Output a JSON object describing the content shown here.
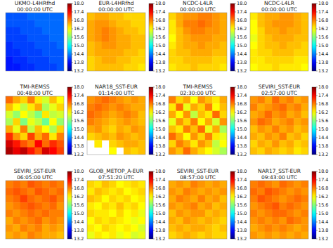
{
  "chart_data": [
    {
      "type": "heatmap",
      "title": "UKMO-L4HRfhd",
      "subtitle": "00:00:00 UTC",
      "zlim": [
        13.2,
        18.0
      ],
      "zticks": [
        13.2,
        13.8,
        14.4,
        {
          "value": 15,
          "label": "15.0"
        },
        15.6,
        16.2,
        16.8,
        17.4,
        {
          "value": 18,
          "label": "18.0"
        }
      ],
      "cells": [
        [
          14.2,
          14.2,
          14.2,
          14.3,
          14.3,
          14.3,
          14.3,
          14.3
        ],
        [
          14.2,
          14.2,
          14.2,
          14.2,
          14.3,
          14.3,
          14.3,
          14.3
        ],
        [
          14.1,
          14.1,
          14.2,
          14.2,
          14.2,
          14.3,
          14.3,
          14.3
        ],
        [
          14.1,
          14.1,
          14.1,
          14.2,
          14.2,
          14.2,
          14.3,
          14.3
        ],
        [
          14.0,
          14.1,
          14.1,
          14.1,
          14.2,
          14.2,
          14.2,
          14.3
        ],
        [
          14.0,
          14.0,
          14.1,
          14.1,
          14.1,
          14.2,
          14.2,
          14.2
        ],
        [
          13.9,
          14.0,
          14.0,
          14.1,
          14.1,
          14.1,
          14.2,
          14.2
        ],
        [
          13.9,
          13.9,
          14.0,
          14.0,
          14.1,
          14.1,
          14.1,
          14.2
        ]
      ]
    },
    {
      "type": "heatmap",
      "title": "EUR-L4HRfhd",
      "subtitle": "00:00:00 UTC",
      "zlim": [
        13.2,
        18.0
      ],
      "zticks": [
        13.2,
        13.8,
        14.4,
        {
          "value": 15,
          "label": "15.0"
        },
        15.6,
        16.2,
        16.8,
        17.4,
        {
          "value": 18,
          "label": "18.0"
        }
      ],
      "cells": [
        [
          16.5,
          16.6,
          16.6,
          16.5,
          16.5,
          16.4,
          16.4,
          16.4
        ],
        [
          16.6,
          16.7,
          16.7,
          16.6,
          16.5,
          16.5,
          16.4,
          16.4
        ],
        [
          16.6,
          16.7,
          16.8,
          16.7,
          16.6,
          16.5,
          16.5,
          16.4
        ],
        [
          16.6,
          16.7,
          16.8,
          16.7,
          16.6,
          16.6,
          16.5,
          16.5
        ],
        [
          16.5,
          16.6,
          16.7,
          16.7,
          16.6,
          16.6,
          16.5,
          16.5
        ],
        [
          16.5,
          16.6,
          16.6,
          16.6,
          16.6,
          16.5,
          16.5,
          16.4
        ],
        [
          16.4,
          16.5,
          16.6,
          16.6,
          16.5,
          16.5,
          16.4,
          16.4
        ],
        [
          16.4,
          16.5,
          16.5,
          16.5,
          16.5,
          16.4,
          16.4,
          16.3
        ]
      ]
    },
    {
      "type": "heatmap",
      "title": "NCDC-L4LR",
      "subtitle": "00:00:00 UTC",
      "zlim": [
        13.2,
        18.0
      ],
      "zticks": [
        13.2,
        13.8,
        14.4,
        {
          "value": 15,
          "label": "15.0"
        },
        15.6,
        16.2,
        16.8,
        17.4,
        {
          "value": 18,
          "label": "18.0"
        }
      ],
      "cells": [
        [
          16.4,
          16.6,
          16.7,
          16.7,
          16.8,
          16.8,
          16.7,
          16.6
        ],
        [
          16.3,
          16.6,
          16.8,
          16.8,
          16.9,
          16.8,
          16.7,
          16.6
        ],
        [
          16.3,
          16.5,
          16.7,
          16.8,
          16.8,
          16.7,
          16.7,
          16.6
        ],
        [
          16.2,
          16.5,
          16.6,
          16.7,
          16.7,
          16.7,
          16.6,
          16.6
        ],
        [
          16.3,
          16.5,
          16.6,
          16.6,
          16.7,
          16.6,
          16.6,
          16.5
        ],
        [
          16.4,
          16.5,
          16.5,
          16.6,
          16.6,
          16.6,
          16.5,
          16.5
        ],
        [
          16.4,
          16.4,
          16.5,
          16.5,
          16.5,
          16.5,
          16.4,
          16.4
        ],
        [
          16.3,
          16.4,
          16.4,
          16.5,
          16.4,
          16.4,
          16.4,
          16.3
        ]
      ]
    },
    {
      "type": "heatmap",
      "title": "NCDC-L4LR",
      "subtitle": "00:00:00 UTC",
      "zlim": [
        13.2,
        18.0
      ],
      "zticks": [
        13.2,
        13.8,
        14.4,
        {
          "value": 15,
          "label": "15.0"
        },
        15.6,
        16.2,
        16.8,
        17.4,
        {
          "value": 18,
          "label": "18.0"
        }
      ],
      "cells": [
        [
          16.3,
          16.5,
          16.6,
          16.6,
          16.7,
          16.7,
          16.6,
          16.5
        ],
        [
          16.2,
          16.5,
          16.6,
          16.7,
          16.7,
          16.7,
          16.6,
          16.5
        ],
        [
          16.2,
          16.4,
          16.6,
          16.6,
          16.7,
          16.6,
          16.6,
          16.5
        ],
        [
          16.1,
          16.4,
          16.5,
          16.6,
          16.6,
          16.6,
          16.5,
          16.5
        ],
        [
          16.2,
          16.4,
          16.5,
          16.5,
          16.6,
          16.5,
          16.5,
          16.4
        ],
        [
          16.3,
          16.4,
          16.4,
          16.5,
          16.5,
          16.5,
          16.4,
          16.4
        ],
        [
          16.3,
          16.3,
          16.4,
          16.4,
          16.4,
          16.4,
          16.3,
          16.3
        ],
        [
          16.2,
          16.3,
          16.3,
          16.4,
          16.3,
          16.3,
          16.3,
          16.2
        ]
      ]
    },
    {
      "type": "heatmap",
      "title": "TMI-REMSS",
      "subtitle": "00:48:00 UTC",
      "zlim": [
        13.2,
        18.0
      ],
      "zticks": [
        13.2,
        13.8,
        14.4,
        {
          "value": 15,
          "label": "15.0"
        },
        15.6,
        16.2,
        16.8,
        17.4,
        {
          "value": 18,
          "label": "18.0"
        }
      ],
      "cells": [
        [
          16.9,
          16.6,
          16.4,
          16.8,
          16.3,
          16.0,
          16.5,
          16.2
        ],
        [
          16.5,
          16.2,
          15.9,
          16.3,
          16.6,
          15.8,
          16.1,
          16.4
        ],
        [
          16.0,
          15.7,
          16.2,
          15.9,
          15.6,
          16.3,
          15.9,
          16.0
        ],
        [
          15.8,
          16.4,
          15.6,
          16.1,
          15.9,
          15.5,
          16.2,
          15.7
        ],
        [
          16.6,
          16.1,
          16.8,
          15.9,
          16.5,
          16.2,
          15.8,
          16.4
        ],
        [
          17.2,
          16.7,
          16.4,
          17.1,
          16.6,
          16.9,
          16.3,
          16.8
        ],
        [
          17.6,
          17.3,
          17.0,
          16.8,
          17.4,
          16.9,
          17.2,
          17.0
        ],
        [
          17.8,
          17.5,
          17.7,
          17.3,
          17.0,
          17.6,
          17.4,
          17.1
        ]
      ]
    },
    {
      "type": "heatmap",
      "title": "NAR18_SST-EUR",
      "subtitle": "01:14:00 UTC",
      "zlim": [
        13.2,
        18.0
      ],
      "zticks": [
        13.2,
        13.8,
        14.4,
        {
          "value": 15,
          "label": "15.0"
        },
        15.6,
        16.2,
        16.8,
        17.4,
        {
          "value": 18,
          "label": "18.0"
        }
      ],
      "cells": [
        [
          16.7,
          16.8,
          16.9,
          16.8,
          16.7,
          16.6,
          16.7,
          16.6
        ],
        [
          16.8,
          16.9,
          16.8,
          16.7,
          16.8,
          16.7,
          16.6,
          16.6
        ],
        [
          16.9,
          16.8,
          16.7,
          16.6,
          16.7,
          16.8,
          16.7,
          16.5
        ],
        [
          16.8,
          16.7,
          16.6,
          16.5,
          16.6,
          16.7,
          16.6,
          16.5
        ],
        [
          16.6,
          16.7,
          16.5,
          16.4,
          16.6,
          16.5,
          16.7,
          16.6
        ],
        [
          16.4,
          16.5,
          16.6,
          16.5,
          16.7,
          16.6,
          16.5,
          16.6
        ],
        [
          null,
          16.3,
          null,
          16.4,
          16.5,
          16.6,
          16.6,
          16.5
        ],
        [
          null,
          null,
          null,
          16.2,
          null,
          16.5,
          16.4,
          16.5
        ]
      ]
    },
    {
      "type": "heatmap",
      "title": "TMI-REMSS",
      "subtitle": "02:30:00 UTC",
      "zlim": [
        13.2,
        18.0
      ],
      "zticks": [
        13.2,
        13.8,
        14.4,
        {
          "value": 15,
          "label": "15.0"
        },
        15.6,
        16.2,
        16.8,
        17.4,
        {
          "value": 18,
          "label": "18.0"
        }
      ],
      "cells": [
        [
          16.8,
          16.4,
          16.6,
          16.2,
          16.7,
          16.5,
          16.3,
          16.6
        ],
        [
          16.3,
          16.9,
          16.1,
          16.6,
          16.4,
          16.8,
          16.2,
          16.5
        ],
        [
          16.6,
          16.2,
          16.7,
          15.9,
          16.5,
          16.3,
          16.9,
          16.4
        ],
        [
          16.1,
          16.7,
          16.4,
          16.8,
          16.2,
          16.6,
          16.0,
          16.7
        ],
        [
          16.5,
          16.3,
          16.8,
          16.5,
          16.9,
          16.1,
          16.6,
          15.8
        ],
        [
          16.9,
          16.6,
          16.2,
          16.7,
          16.4,
          16.8,
          16.3,
          16.1
        ],
        [
          16.4,
          16.8,
          16.6,
          16.3,
          16.7,
          16.5,
          15.9,
          16.2
        ],
        [
          16.7,
          16.5,
          16.9,
          16.6,
          16.4,
          16.2,
          16.0,
          15.8
        ]
      ]
    },
    {
      "type": "heatmap",
      "title": "SEVIRI_SST-EUR",
      "subtitle": "02:57:00 UTC",
      "zlim": [
        13.2,
        18.0
      ],
      "zticks": [
        13.2,
        13.8,
        14.4,
        {
          "value": 15,
          "label": "15.0"
        },
        15.6,
        16.2,
        16.8,
        17.4,
        {
          "value": 18,
          "label": "18.0"
        }
      ],
      "cells": [
        [
          16.7,
          16.8,
          16.6,
          16.9,
          16.7,
          16.8,
          16.6,
          16.7
        ],
        [
          16.8,
          16.6,
          16.7,
          16.8,
          16.9,
          16.7,
          16.8,
          16.6
        ],
        [
          16.6,
          16.7,
          16.9,
          16.7,
          16.8,
          16.6,
          16.7,
          16.5
        ],
        [
          16.7,
          16.9,
          16.8,
          16.6,
          16.7,
          16.8,
          16.6,
          16.7
        ],
        [
          16.5,
          16.7,
          16.6,
          16.8,
          16.6,
          16.7,
          16.5,
          16.6
        ],
        [
          16.6,
          16.5,
          16.7,
          16.6,
          16.8,
          16.5,
          16.6,
          16.4
        ],
        [
          16.4,
          16.6,
          16.5,
          16.7,
          16.5,
          16.6,
          16.4,
          16.5
        ],
        [
          16.5,
          16.4,
          16.6,
          16.5,
          16.4,
          16.5,
          16.3,
          16.4
        ]
      ]
    },
    {
      "type": "heatmap",
      "title": "SEVIRI_SST-EUR",
      "subtitle": "06:05:00 UTC",
      "zlim": [
        13.2,
        18.0
      ],
      "zticks": [
        13.2,
        13.8,
        14.4,
        {
          "value": 15,
          "label": "15.0"
        },
        15.6,
        16.2,
        16.8,
        17.4,
        {
          "value": 18,
          "label": "18.0"
        }
      ],
      "cells": [
        [
          16.8,
          16.9,
          16.8,
          17.0,
          16.9,
          16.8,
          16.9,
          16.8
        ],
        [
          16.9,
          17.0,
          16.9,
          16.8,
          17.0,
          16.9,
          16.8,
          16.9
        ],
        [
          16.8,
          16.9,
          17.1,
          16.9,
          16.8,
          16.9,
          17.0,
          16.8
        ],
        [
          16.7,
          16.8,
          16.9,
          17.0,
          16.9,
          16.8,
          16.9,
          16.7
        ],
        [
          16.8,
          16.7,
          16.8,
          16.9,
          16.8,
          16.9,
          16.8,
          16.8
        ],
        [
          16.6,
          16.8,
          16.7,
          16.8,
          16.9,
          16.7,
          16.8,
          16.7
        ],
        [
          16.7,
          16.6,
          16.8,
          16.7,
          16.8,
          16.6,
          16.7,
          16.6
        ],
        [
          16.6,
          16.7,
          16.6,
          16.8,
          16.7,
          16.6,
          16.6,
          16.5
        ]
      ]
    },
    {
      "type": "heatmap",
      "title": "GLOB_METOP_A-EUR",
      "subtitle": "07:51:20 UTC",
      "zlim": [
        13.2,
        18.0
      ],
      "zticks": [
        13.2,
        13.8,
        14.4,
        {
          "value": 15,
          "label": "15.0"
        },
        15.6,
        16.2,
        16.8,
        17.4,
        {
          "value": 18,
          "label": "18.0"
        }
      ],
      "cells": [
        [
          16.4,
          16.3,
          16.5,
          16.4,
          16.2,
          16.3,
          16.4,
          16.3
        ],
        [
          16.3,
          16.5,
          16.4,
          16.3,
          16.4,
          16.2,
          16.3,
          16.4
        ],
        [
          16.5,
          16.4,
          16.2,
          16.4,
          16.3,
          16.4,
          16.2,
          16.3
        ],
        [
          16.3,
          16.2,
          16.4,
          16.3,
          16.5,
          16.3,
          16.4,
          16.2
        ],
        [
          16.4,
          16.3,
          16.3,
          16.2,
          16.4,
          16.2,
          16.3,
          16.1
        ],
        [
          16.2,
          16.4,
          16.3,
          16.4,
          16.3,
          16.2,
          16.1,
          16.2
        ],
        [
          16.3,
          16.2,
          16.4,
          16.3,
          16.2,
          16.3,
          16.2,
          16.0
        ],
        [
          16.1,
          16.3,
          16.2,
          16.3,
          16.1,
          16.2,
          16.0,
          16.1
        ]
      ]
    },
    {
      "type": "heatmap",
      "title": "SEVIRI_SST-EUR",
      "subtitle": "08:57:00 UTC",
      "zlim": [
        13.2,
        18.0
      ],
      "zticks": [
        13.2,
        13.8,
        14.4,
        {
          "value": 15,
          "label": "15.0"
        },
        15.6,
        16.2,
        16.8,
        17.4,
        {
          "value": 18,
          "label": "18.0"
        }
      ],
      "cells": [
        [
          16.6,
          16.7,
          16.6,
          16.8,
          16.7,
          16.6,
          16.7,
          16.6
        ],
        [
          16.7,
          16.6,
          16.8,
          16.7,
          16.6,
          16.7,
          16.6,
          16.7
        ],
        [
          16.6,
          16.8,
          16.7,
          16.6,
          16.8,
          16.6,
          16.7,
          16.5
        ],
        [
          16.7,
          16.6,
          16.7,
          16.8,
          16.6,
          16.7,
          16.5,
          16.6
        ],
        [
          16.5,
          16.7,
          16.6,
          16.7,
          16.7,
          16.5,
          16.6,
          16.5
        ],
        [
          16.6,
          16.5,
          16.7,
          16.6,
          16.5,
          16.6,
          16.5,
          16.4
        ],
        [
          16.5,
          16.6,
          16.5,
          16.6,
          16.6,
          16.5,
          16.4,
          16.5
        ],
        [
          16.4,
          16.5,
          16.6,
          16.5,
          16.4,
          16.5,
          16.4,
          16.4
        ]
      ]
    },
    {
      "type": "heatmap",
      "title": "NAR17_SST-EUR",
      "subtitle": "09:43:00 UTC",
      "zlim": [
        13.2,
        18.0
      ],
      "zticks": [
        13.2,
        13.8,
        14.4,
        {
          "value": 15,
          "label": "15.0"
        },
        15.6,
        16.2,
        16.8,
        17.4,
        {
          "value": 18,
          "label": "18.0"
        }
      ],
      "cells": [
        [
          16.8,
          16.9,
          16.8,
          16.7,
          16.9,
          16.8,
          16.7,
          16.8
        ],
        [
          16.9,
          16.8,
          17.0,
          16.9,
          16.8,
          16.7,
          16.8,
          16.7
        ],
        [
          16.8,
          17.0,
          16.9,
          16.8,
          16.7,
          16.8,
          16.9,
          16.8
        ],
        [
          16.7,
          16.8,
          16.9,
          17.0,
          16.8,
          16.9,
          16.8,
          16.7
        ],
        [
          16.8,
          16.7,
          16.8,
          16.9,
          16.9,
          16.8,
          16.7,
          16.8
        ],
        [
          16.7,
          16.8,
          16.7,
          16.8,
          16.7,
          16.9,
          16.8,
          16.7
        ],
        [
          16.6,
          16.7,
          16.8,
          16.7,
          16.8,
          16.7,
          16.6,
          16.7
        ],
        [
          16.7,
          16.6,
          16.7,
          16.6,
          16.7,
          16.6,
          16.7,
          16.6
        ]
      ]
    }
  ]
}
